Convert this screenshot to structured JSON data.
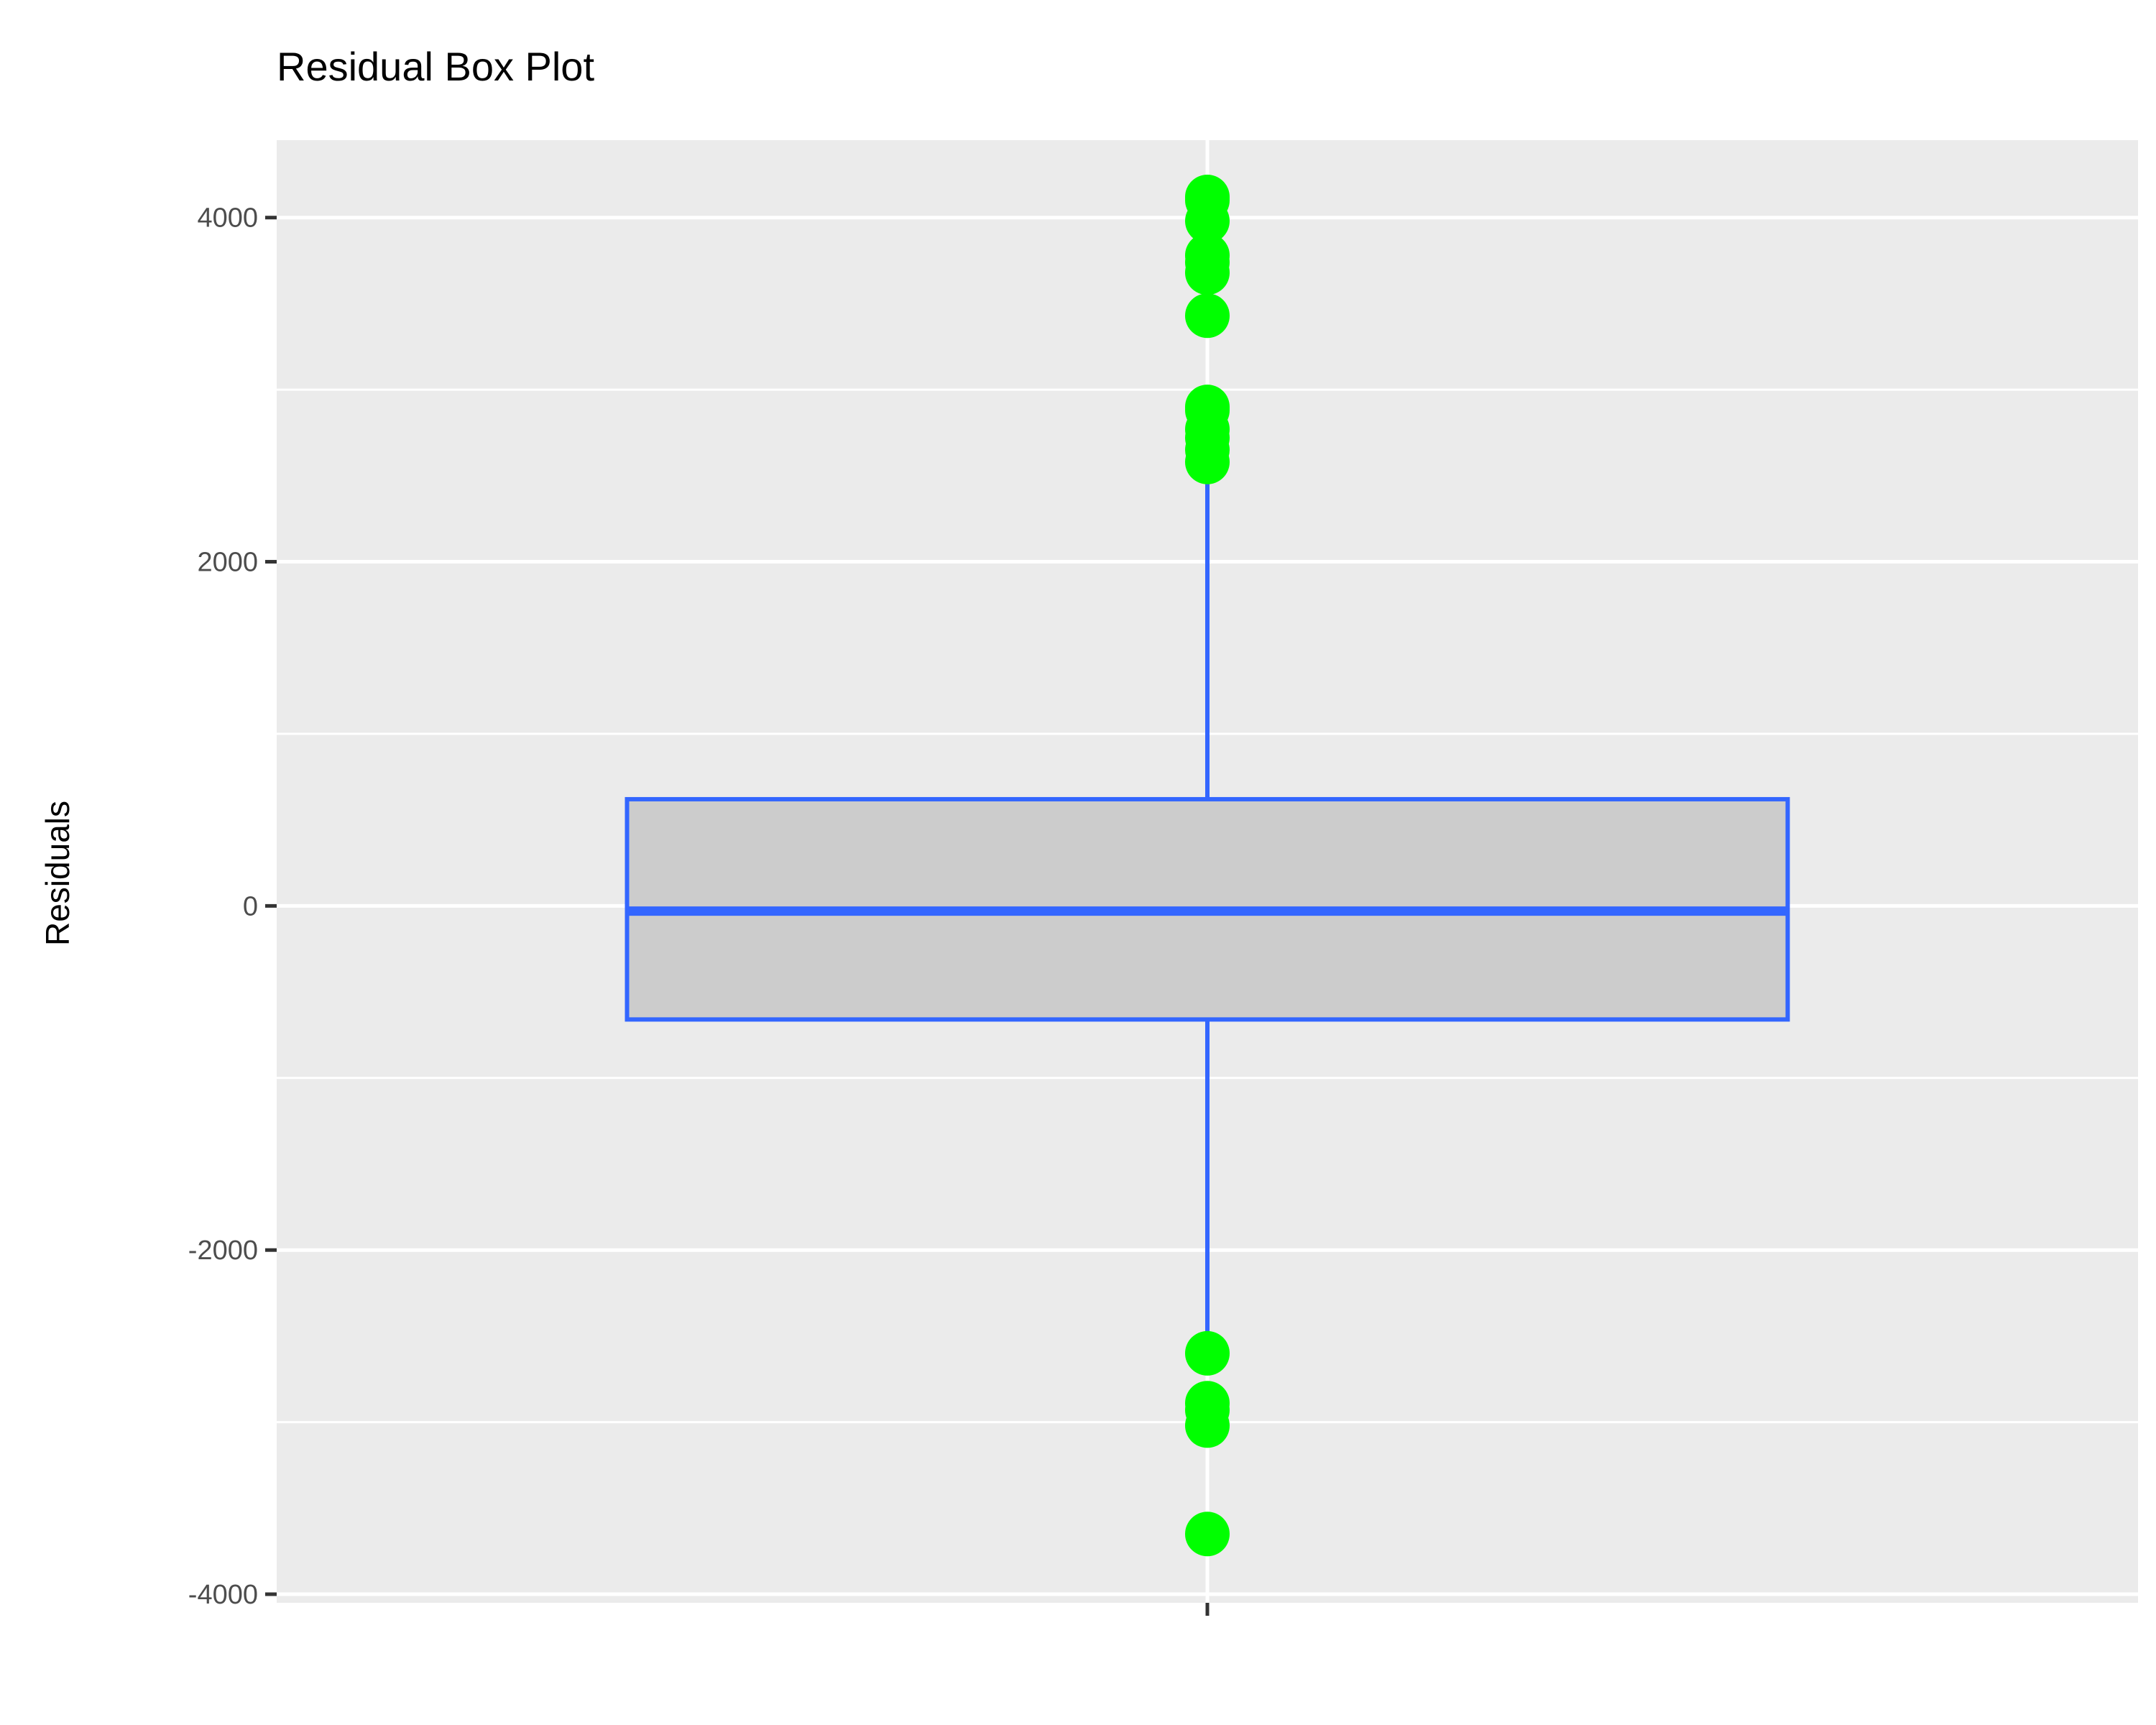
{
  "chart_data": {
    "type": "box",
    "title": "Residual Box Plot",
    "xlabel": "",
    "ylabel": "Residuals",
    "ylim": [
      -4050,
      4450
    ],
    "yticks": [
      -4000,
      -2000,
      0,
      2000,
      4000
    ],
    "ytick_labels": [
      "-4000",
      "-2000",
      "0",
      "2000",
      "4000"
    ],
    "grid": true,
    "box": {
      "q1": -660,
      "median": -30,
      "q3": 620,
      "whisker_low": -2580,
      "whisker_high": 2520
    },
    "outliers": [
      4120,
      4100,
      3980,
      3780,
      3740,
      3680,
      3430,
      2900,
      2880,
      2770,
      2720,
      2650,
      2580,
      -2600,
      -2890,
      -2930,
      -3020,
      -3650
    ]
  },
  "colors": {
    "panel_background": "#ebebeb",
    "grid": "#ffffff",
    "box_fill": "#cccccc",
    "box_line": "#3366ff",
    "outlier": "#00ff00",
    "tick": "#333333"
  }
}
